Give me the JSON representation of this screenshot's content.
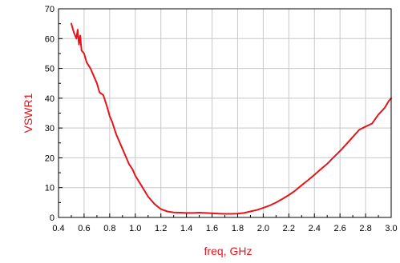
{
  "chart_data": {
    "type": "line",
    "title": "",
    "xlabel": "freq, GHz",
    "ylabel": "VSWR1",
    "xlim": [
      0.4,
      3.0
    ],
    "ylim": [
      0,
      70
    ],
    "x_ticks": [
      "0.4",
      "0.6",
      "0.8",
      "1.0",
      "1.2",
      "1.4",
      "1.6",
      "1.8",
      "2.0",
      "2.2",
      "2.4",
      "2.6",
      "2.8",
      "3.0"
    ],
    "y_ticks": [
      "0",
      "10",
      "20",
      "30",
      "40",
      "50",
      "60",
      "70"
    ],
    "grid": true,
    "legend": "none",
    "colors": {
      "series": "#e8141b",
      "axis_label": "#e8141b",
      "grid": "#c8c8c8",
      "frame": "#000000"
    },
    "series": [
      {
        "x": [
          0.5,
          0.52,
          0.54,
          0.55,
          0.56,
          0.57,
          0.58,
          0.6,
          0.62,
          0.65,
          0.68,
          0.7,
          0.72,
          0.75,
          0.78,
          0.8,
          0.82,
          0.85,
          0.88,
          0.9,
          0.93,
          0.95,
          0.98,
          1.0,
          1.05,
          1.1,
          1.15,
          1.2,
          1.25,
          1.3,
          1.35,
          1.4,
          1.45,
          1.5,
          1.55,
          1.6,
          1.65,
          1.7,
          1.75,
          1.8,
          1.85,
          1.9,
          1.95,
          2.0,
          2.05,
          2.1,
          2.15,
          2.2,
          2.25,
          2.3,
          2.35,
          2.4,
          2.45,
          2.5,
          2.55,
          2.6,
          2.65,
          2.7,
          2.75,
          2.8,
          2.85,
          2.9,
          2.95,
          2.98,
          3.0
        ],
        "y": [
          65,
          62,
          60,
          63,
          58,
          61,
          56,
          55,
          52,
          50,
          47,
          45,
          42,
          41,
          37,
          34,
          32,
          28,
          25,
          23,
          20,
          18,
          16,
          14,
          10.5,
          7,
          4.5,
          2.8,
          2.0,
          1.7,
          1.6,
          1.5,
          1.5,
          1.6,
          1.5,
          1.4,
          1.3,
          1.2,
          1.2,
          1.3,
          1.5,
          2.0,
          2.5,
          3.2,
          4.0,
          5.0,
          6.2,
          7.5,
          9.0,
          10.8,
          12.5,
          14.3,
          16.2,
          18.0,
          20.2,
          22.3,
          24.6,
          27.0,
          29.4,
          30.5,
          31.5,
          34.5,
          36.8,
          39.0,
          40.0
        ]
      }
    ]
  }
}
